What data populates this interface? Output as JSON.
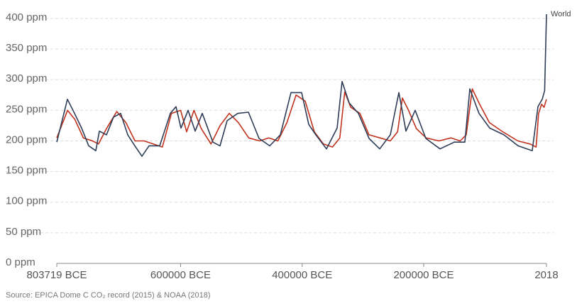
{
  "chart_data": {
    "type": "line",
    "source": "Source: EPICA Dome C CO₂ record (2015) & NOAA (2018)",
    "xlim": [
      -803719,
      2018
    ],
    "xticks": [
      {
        "value": -803719,
        "label": "803719 BCE"
      },
      {
        "value": -600000,
        "label": "600000 BCE"
      },
      {
        "value": -400000,
        "label": "400000 BCE"
      },
      {
        "value": -200000,
        "label": "200000 BCE"
      },
      2018
    ],
    "ylim": [
      0,
      400
    ],
    "yticks": [
      {
        "value": 0,
        "label": "0 ppm"
      },
      {
        "value": 50,
        "label": "50 ppm"
      },
      {
        "value": 100,
        "label": "100 ppm"
      },
      {
        "value": 150,
        "label": "150 ppm"
      },
      {
        "value": 200,
        "label": "200 ppm"
      },
      {
        "value": 250,
        "label": "250 ppm"
      },
      {
        "value": 300,
        "label": "300 ppm"
      },
      {
        "value": 350,
        "label": "350 ppm"
      },
      {
        "value": 400,
        "label": "400 ppm"
      }
    ],
    "grid": true,
    "series": [
      {
        "name": "World",
        "color": "#2e3d57",
        "x": [
          -803719,
          -786200,
          -774500,
          -762800,
          -751200,
          -739500,
          -733600,
          -722000,
          -710300,
          -698600,
          -686900,
          -675300,
          -663600,
          -651900,
          -634400,
          -616900,
          -607500,
          -599400,
          -587700,
          -576000,
          -564300,
          -546800,
          -535100,
          -523500,
          -505900,
          -488400,
          -470900,
          -453400,
          -435900,
          -418400,
          -400900,
          -389200,
          -377500,
          -360000,
          -342500,
          -334300,
          -322600,
          -307400,
          -289900,
          -272400,
          -254900,
          -240900,
          -229200,
          -214000,
          -196500,
          -173100,
          -149800,
          -132300,
          -124100,
          -109000,
          -91400,
          -68100,
          -44700,
          -21400,
          -12000,
          -5000,
          -1000,
          2018
        ],
        "values": [
          198,
          268,
          245,
          221,
          192,
          184,
          216,
          210,
          239,
          245,
          210,
          192,
          175,
          192,
          192,
          245,
          256,
          221,
          250,
          216,
          245,
          198,
          192,
          233,
          245,
          247,
          204,
          192,
          210,
          279,
          279,
          227,
          210,
          187,
          221,
          297,
          262,
          245,
          204,
          187,
          210,
          279,
          216,
          250,
          204,
          187,
          198,
          198,
          285,
          245,
          221,
          210,
          192,
          184,
          256,
          268,
          282,
          407
        ]
      },
      {
        "color": "#c0321d",
        "x": [
          -803719,
          -786000,
          -774000,
          -760000,
          -745000,
          -735000,
          -722000,
          -705000,
          -690000,
          -675000,
          -660000,
          -645000,
          -630000,
          -615000,
          -600000,
          -590000,
          -578000,
          -566000,
          -550000,
          -535000,
          -520000,
          -505000,
          -488000,
          -470000,
          -455000,
          -440000,
          -425000,
          -410000,
          -395000,
          -380000,
          -365000,
          -350000,
          -338000,
          -330000,
          -320000,
          -305000,
          -290000,
          -272000,
          -255000,
          -243000,
          -235000,
          -225000,
          -212000,
          -196000,
          -175000,
          -155000,
          -140000,
          -130000,
          -120000,
          -108000,
          -92000,
          -70000,
          -45000,
          -25000,
          -15000,
          -11000,
          -6000,
          -2000,
          2018
        ],
        "values": [
          205,
          250,
          235,
          205,
          200,
          195,
          220,
          248,
          230,
          200,
          200,
          195,
          190,
          245,
          250,
          215,
          250,
          220,
          195,
          225,
          245,
          230,
          205,
          200,
          205,
          200,
          230,
          275,
          265,
          215,
          195,
          190,
          205,
          280,
          255,
          245,
          210,
          205,
          200,
          215,
          270,
          250,
          220,
          205,
          200,
          205,
          200,
          210,
          285,
          260,
          230,
          215,
          200,
          195,
          190,
          245,
          260,
          255,
          268
        ]
      }
    ]
  }
}
